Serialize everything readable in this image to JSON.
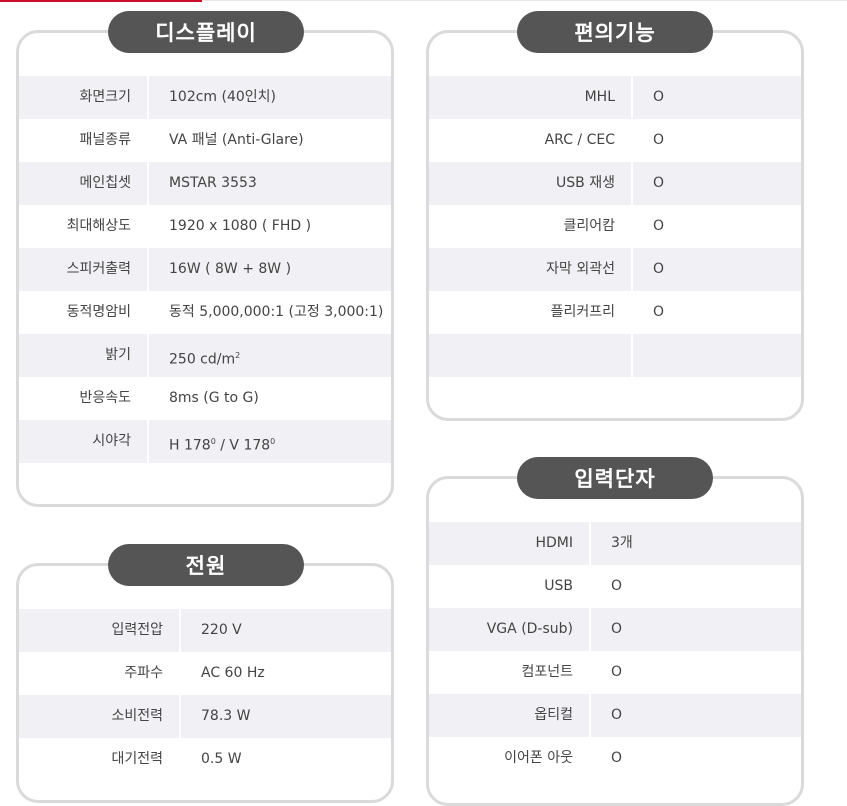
{
  "display": {
    "title": "디스플레이",
    "rows": [
      {
        "label": "화면크기",
        "value": "102cm (40인치)"
      },
      {
        "label": "패널종류",
        "value": "VA 패널 (Anti-Glare)"
      },
      {
        "label": "메인칩셋",
        "value": "MSTAR 3553"
      },
      {
        "label": "최대해상도",
        "value": "1920 x 1080 ( FHD )"
      },
      {
        "label": "스피커출력",
        "value": "16W ( 8W + 8W )"
      },
      {
        "label": "동적명암비",
        "value": "동적 5,000,000:1 (고정 3,000:1)"
      },
      {
        "label": "밝기",
        "value": "250 cd/m",
        "sup": "2"
      },
      {
        "label": "반응속도",
        "value": "8ms (G to G)"
      },
      {
        "label": "시야각",
        "value_parts": [
          "H 178",
          "0",
          " / V 178",
          "0"
        ]
      }
    ]
  },
  "convenience": {
    "title": "편의기능",
    "rows": [
      {
        "label": "MHL",
        "value": "O"
      },
      {
        "label": "ARC / CEC",
        "value": "O"
      },
      {
        "label": "USB 재생",
        "value": "O"
      },
      {
        "label": "클리어캄",
        "value": "O"
      },
      {
        "label": "자막 외곽선",
        "value": "O"
      },
      {
        "label": "플리커프리",
        "value": "O"
      },
      {
        "label": "",
        "value": ""
      }
    ]
  },
  "power": {
    "title": "전원",
    "rows": [
      {
        "label": "입력전압",
        "value": "220 V"
      },
      {
        "label": "주파수",
        "value": "AC 60 Hz"
      },
      {
        "label": "소비전력",
        "value": "78.3 W"
      },
      {
        "label": "대기전력",
        "value": "0.5 W"
      }
    ]
  },
  "inputs": {
    "title": "입력단자",
    "rows": [
      {
        "label": "HDMI",
        "value": "3개"
      },
      {
        "label": "USB",
        "value": "O"
      },
      {
        "label": "VGA (D-sub)",
        "value": "O"
      },
      {
        "label": "컴포넌트",
        "value": "O"
      },
      {
        "label": "옵티컬",
        "value": "O"
      },
      {
        "label": "이어폰 아웃",
        "value": "O"
      }
    ]
  }
}
